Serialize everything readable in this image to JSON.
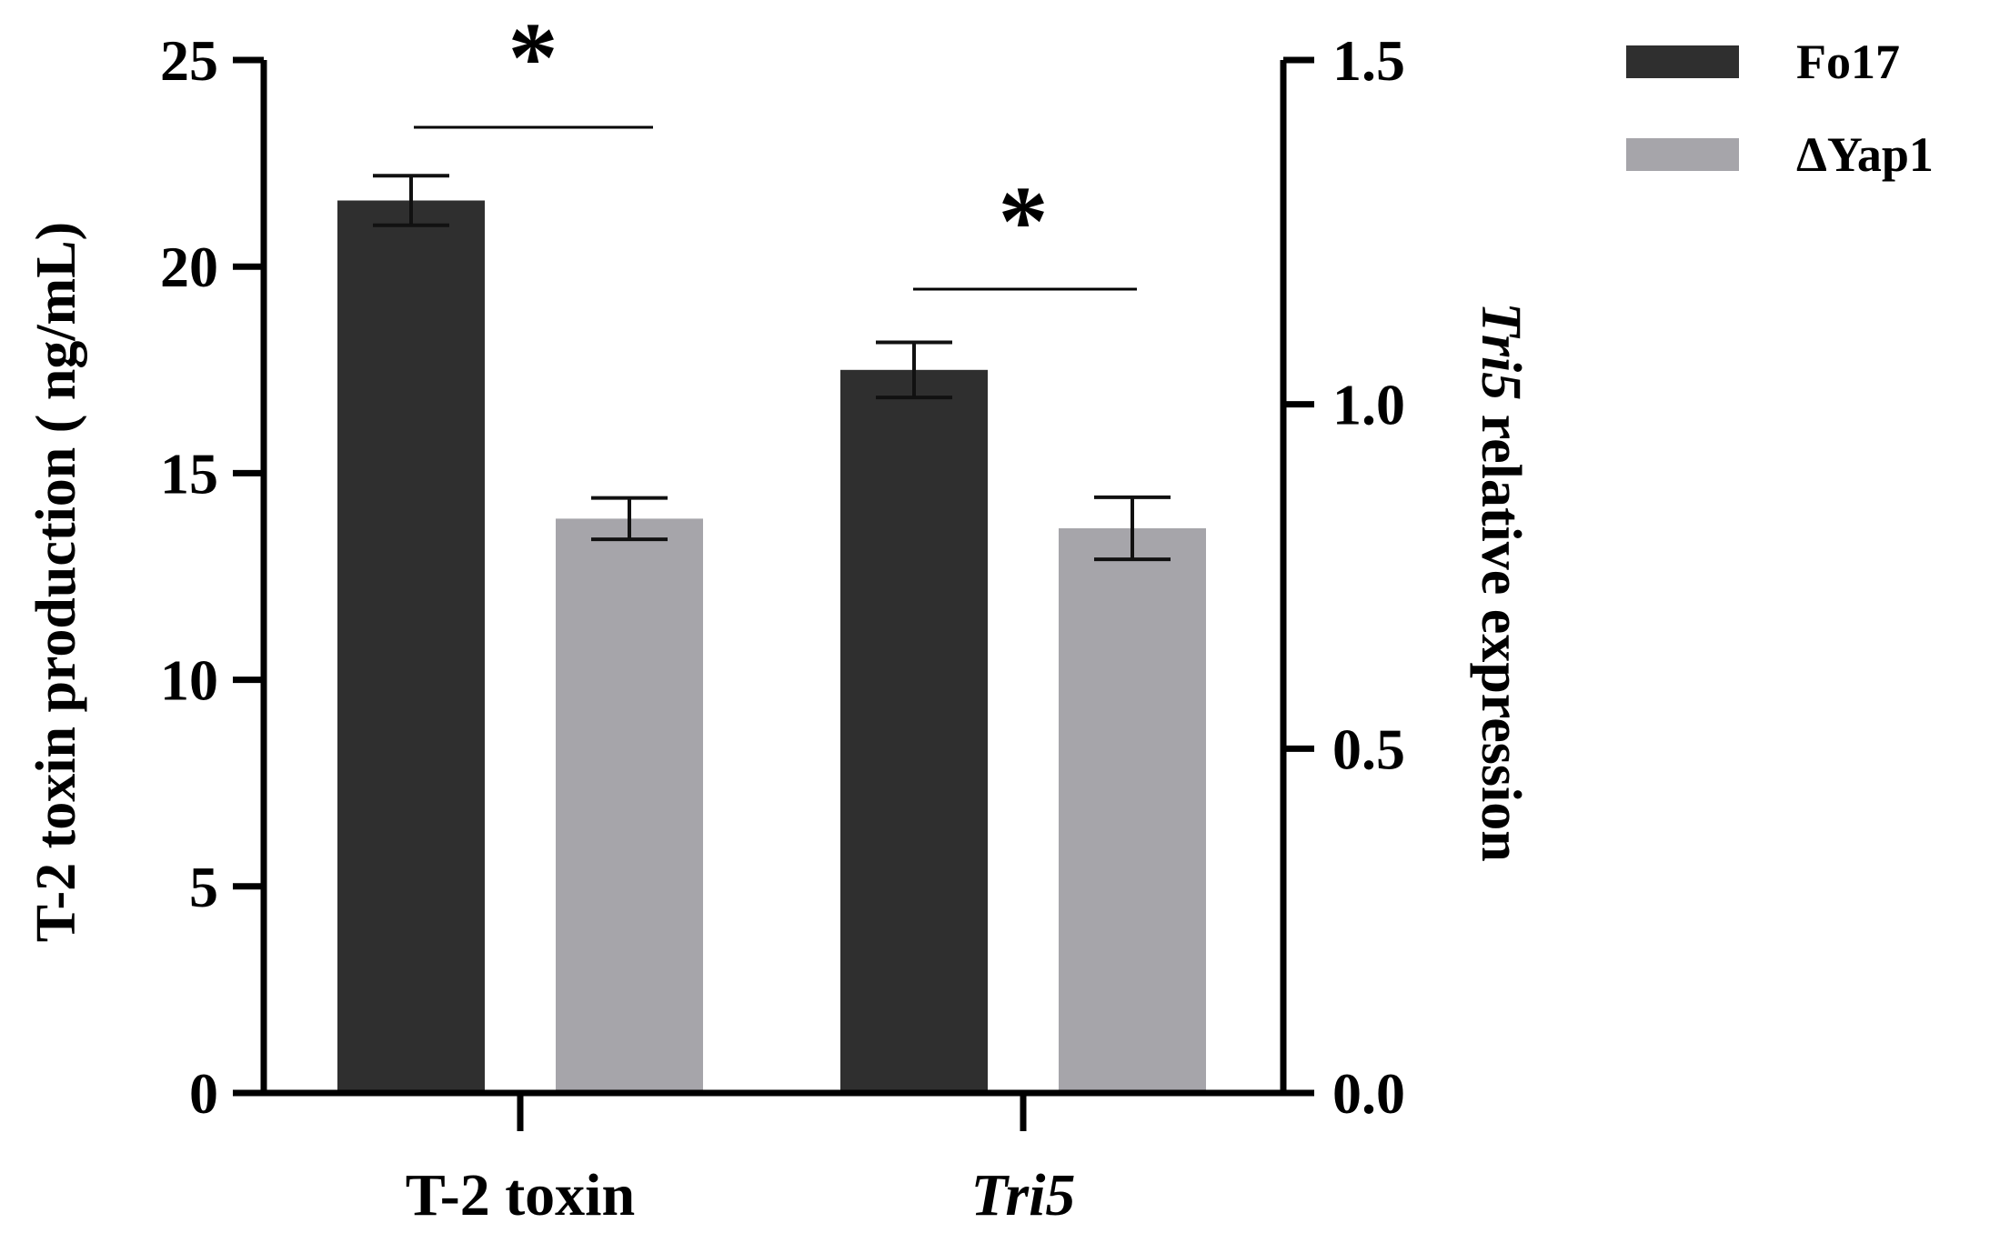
{
  "chart_data": {
    "type": "bar",
    "categories": [
      "T-2 toxin",
      "Tri5"
    ],
    "category_styles": [
      "normal",
      "italic"
    ],
    "series": [
      {
        "name": "Fo17",
        "color": "#2f2f2f",
        "values": [
          21.6,
          1.05
        ],
        "errors": [
          0.6,
          0.04
        ],
        "axis": [
          "left",
          "right"
        ]
      },
      {
        "name": "ΔYap1",
        "color": "#a6a5aa",
        "values": [
          13.9,
          0.82
        ],
        "errors": [
          0.5,
          0.045
        ],
        "axis": [
          "left",
          "right"
        ]
      }
    ],
    "left_axis": {
      "label": "T-2 toxin production ( ng/mL)",
      "ylim": [
        0,
        25
      ],
      "ticks": [
        "0",
        "5",
        "10",
        "15",
        "20",
        "25"
      ]
    },
    "right_axis": {
      "label_italic": "Tri5",
      "label_rest": " relative expression",
      "ylim": [
        0,
        1.5
      ],
      "ticks": [
        "0.0",
        "0.5",
        "1.0",
        "1.5"
      ]
    },
    "significance": [
      {
        "category": "T-2 toxin",
        "symbol": "*"
      },
      {
        "category": "Tri5",
        "symbol": "*"
      }
    ],
    "legend_position": "top-right",
    "grid": false
  }
}
